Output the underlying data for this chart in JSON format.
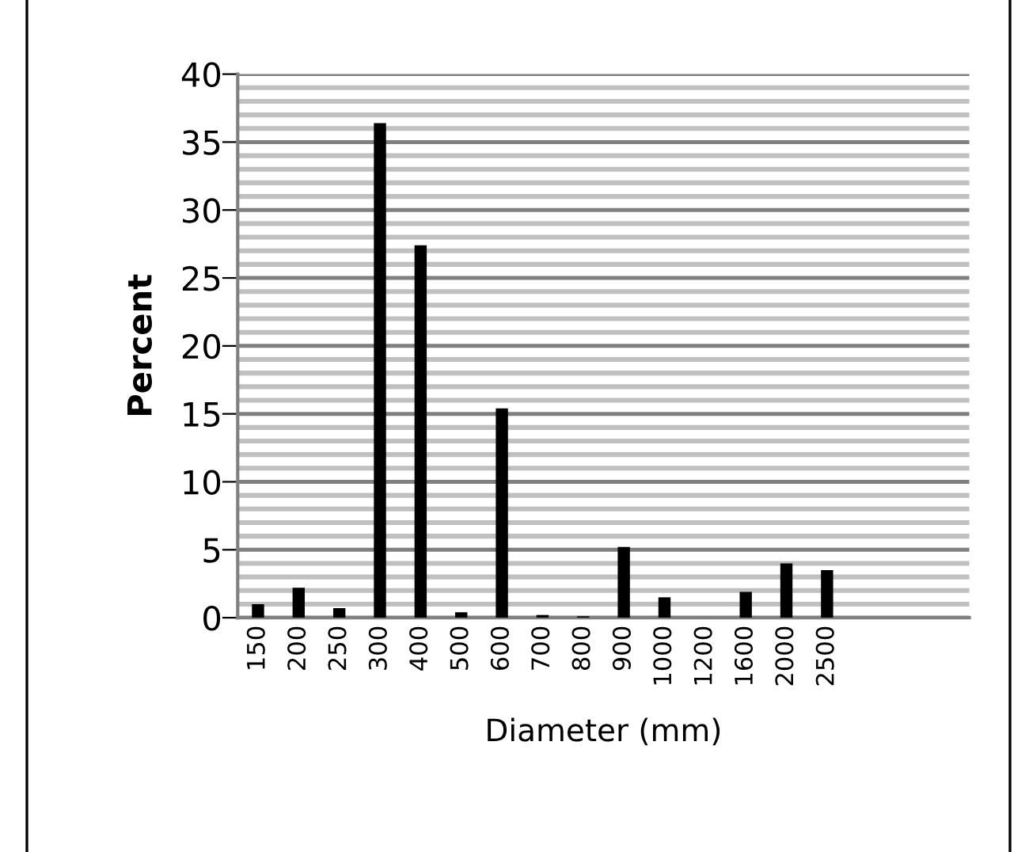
{
  "chart_data": {
    "type": "bar",
    "xlabel": "Diameter (mm)",
    "ylabel": "Percent",
    "categories": [
      "150",
      "200",
      "250",
      "300",
      "400",
      "500",
      "600",
      "700",
      "800",
      "900",
      "1000",
      "1200",
      "1600",
      "2000",
      "2500",
      null,
      null,
      null
    ],
    "values": [
      1.0,
      2.2,
      0.7,
      36.4,
      27.4,
      0.4,
      15.4,
      0.2,
      0.1,
      5.2,
      1.5,
      0,
      1.9,
      4.0,
      3.5,
      null,
      null,
      null
    ],
    "color": "#000000",
    "ylim": [
      0,
      40
    ],
    "yticks": [
      0,
      {
        "value": 1,
        "label": null
      },
      {
        "value": 2,
        "label": null
      },
      {
        "value": 3,
        "label": null
      },
      {
        "value": 4,
        "label": null
      },
      5,
      {
        "value": 6,
        "label": null
      },
      {
        "value": 7,
        "label": null
      },
      {
        "value": 8,
        "label": null
      },
      {
        "value": 9,
        "label": null
      },
      10,
      {
        "value": 11,
        "label": null
      },
      {
        "value": 12,
        "label": null
      },
      {
        "value": 13,
        "label": null
      },
      {
        "value": 14,
        "label": null
      },
      15,
      {
        "value": 16,
        "label": null
      },
      {
        "value": 17,
        "label": null
      },
      {
        "value": 18,
        "label": null
      },
      {
        "value": 19,
        "label": null
      },
      20,
      {
        "value": 21,
        "label": null
      },
      {
        "value": 22,
        "label": null
      },
      {
        "value": 23,
        "label": null
      },
      {
        "value": 24,
        "label": null
      },
      25,
      {
        "value": 26,
        "label": null
      },
      {
        "value": 27,
        "label": null
      },
      {
        "value": 28,
        "label": null
      },
      {
        "value": 29,
        "label": null
      },
      30,
      {
        "value": 31,
        "label": null
      },
      {
        "value": 32,
        "label": null
      },
      {
        "value": 33,
        "label": null
      },
      {
        "value": 34,
        "label": null
      },
      35,
      {
        "value": 36,
        "label": null
      },
      {
        "value": 37,
        "label": null
      },
      {
        "value": 38,
        "label": null
      },
      {
        "value": 39,
        "label": null
      },
      40
    ],
    "grid": "y",
    "legend": false
  }
}
